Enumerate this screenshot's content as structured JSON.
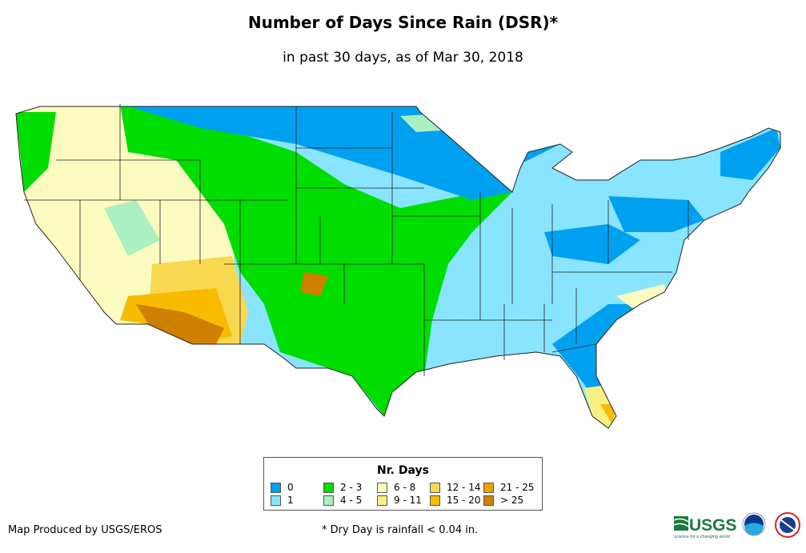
{
  "title": "Number of Days Since Rain (DSR)*",
  "subtitle": "in past 30 days, as of Mar 30, 2018",
  "legend": {
    "title": "Nr. Days",
    "items": [
      {
        "label": "0",
        "color": "#00a0f0"
      },
      {
        "label": "1",
        "color": "#88e4ff"
      },
      {
        "label": "2 - 3",
        "color": "#00dd00"
      },
      {
        "label": "4 - 5",
        "color": "#aaf0c0"
      },
      {
        "label": "6 - 8",
        "color": "#fbfbc0"
      },
      {
        "label": "9 - 11",
        "color": "#f8f080"
      },
      {
        "label": "12 - 14",
        "color": "#f8d850"
      },
      {
        "label": "15 - 20",
        "color": "#f8bb00"
      },
      {
        "label": "21 - 25",
        "color": "#f0a000"
      },
      {
        "label": "> 25",
        "color": "#d08000"
      }
    ]
  },
  "footer": {
    "produced_by": "Map Produced by USGS/EROS",
    "note": "* Dry Day is rainfall < 0.04 in."
  },
  "logos": {
    "usgs": "USGS",
    "usgs_tagline": "science for a changing world",
    "noaa": "NOAA",
    "nws": "NATIONAL WEATHER SERVICE"
  }
}
